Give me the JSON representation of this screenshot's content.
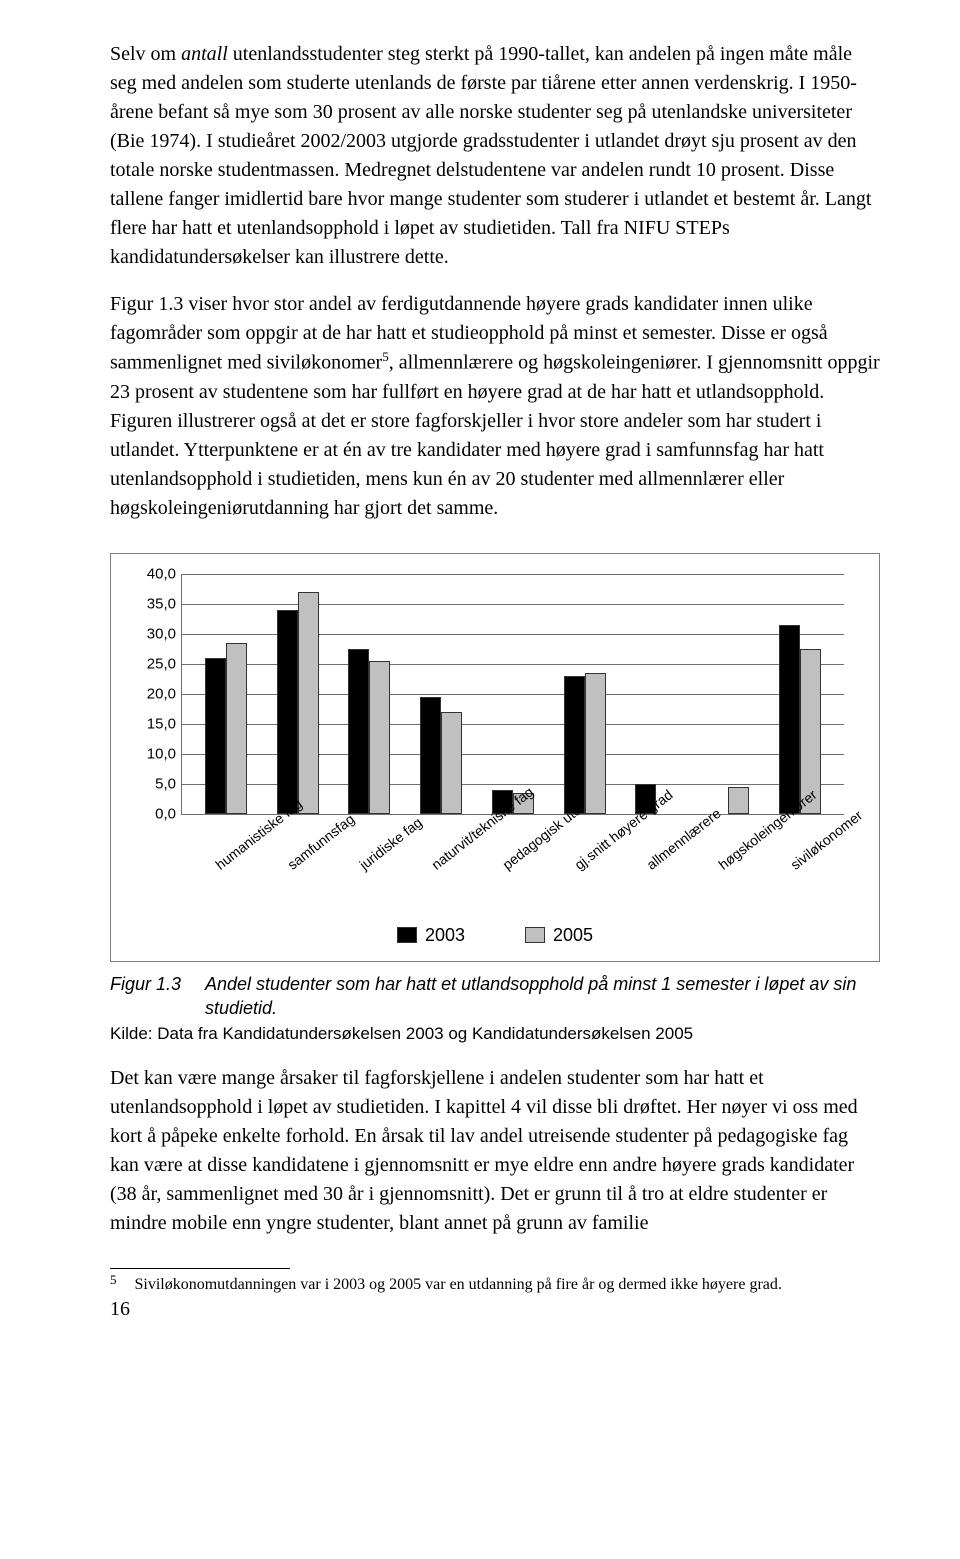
{
  "para1_a": "Selv om ",
  "para1_b": "antall",
  "para1_c": " utenlandsstudenter steg sterkt på 1990-tallet, kan andelen på ingen måte måle seg med andelen som studerte utenlands de første par tiårene etter annen verdenskrig. I 1950-årene befant så mye som 30 prosent av alle norske studenter seg på utenlandske universiteter (Bie 1974). I studieåret 2002/2003 utgjorde gradsstudenter i utlandet drøyt sju prosent av den totale norske studentmassen. Medregnet delstudentene var andelen rundt 10 prosent. Disse tallene fanger imidlertid bare hvor mange studenter som studerer i utlandet et bestemt år. Langt flere har hatt et utenlandsopphold i løpet av studietiden. Tall fra NIFU STEPs kandidatundersøkelser kan illustrere dette.",
  "para2_a": "Figur 1.3 viser hvor stor andel av ferdigutdannende høyere grads kandidater innen ulike fagområder som oppgir at de har hatt et studieopphold på minst et semester. Disse er også sammenlignet med siviløkonomer",
  "para2_b": ", allmennlærere og høgskoleingeniører. I gjennomsnitt oppgir 23 prosent av studentene som har fullført en høyere grad at de har hatt et utlandsopphold. Figuren illustrerer også at det er store fagforskjeller i hvor store andeler som har studert i utlandet. Ytterpunktene er at én av tre kandidater med høyere grad i samfunnsfag har hatt utenlandsopphold i studietiden, mens kun én av 20 studenter med allmennlærer eller høgskoleingeniørutdanning har gjort det samme.",
  "para3": "Det kan være mange årsaker til fagforskjellene i andelen studenter som har hatt et utenlandsopphold i løpet av studietiden. I kapittel 4 vil disse bli drøftet. Her nøyer vi oss med kort å påpeke enkelte forhold. En årsak til lav andel utreisende studenter på pedagogiske fag kan være at disse kandidatene i gjennomsnitt er mye eldre enn andre høyere grads kandidater (38 år, sammenlignet med 30 år i gjennomsnitt). Det er grunn til å tro at eldre studenter er mindre mobile enn yngre studenter, blant annet på grunn av familie",
  "fn_ref": "5",
  "chart": {
    "categories": [
      "humanistiske fag",
      "samfunnsfag",
      "juridiske fag",
      "naturvit/tekniske fag",
      "pedagogisk utd",
      "gj.snitt høyere grad",
      "allmennlærere",
      "høgskoleingeniører",
      "siviløkonomer"
    ],
    "series": [
      {
        "label": "2003",
        "color": "#000000",
        "values": [
          26.0,
          34.0,
          27.5,
          19.5,
          4.0,
          23.0,
          5.0,
          0.0,
          31.5
        ]
      },
      {
        "label": "2005",
        "color": "#c0c0c0",
        "values": [
          28.5,
          37.0,
          25.5,
          17.0,
          3.5,
          23.5,
          0.0,
          4.5,
          27.5
        ]
      }
    ],
    "ymax": 40,
    "ystep": 5,
    "yticks": [
      "0,0",
      "5,0",
      "10,0",
      "15,0",
      "20,0",
      "25,0",
      "30,0",
      "35,0",
      "40,0"
    ],
    "grid_color": "#6f6f6f",
    "bg": "#ffffff",
    "bar_border": "#333333"
  },
  "caption_num": "Figur 1.3",
  "caption_text": "Andel studenter som har hatt et utlandsopphold på minst 1 semester i løpet av sin studietid.",
  "source": "Kilde: Data fra Kandidatundersøkelsen 2003 og Kandidatundersøkelsen 2005",
  "footnote_num": "5",
  "footnote_text": "Siviløkonomutdanningen var i 2003 og 2005 var en utdanning på fire år og dermed ikke høyere grad.",
  "page_number": "16"
}
